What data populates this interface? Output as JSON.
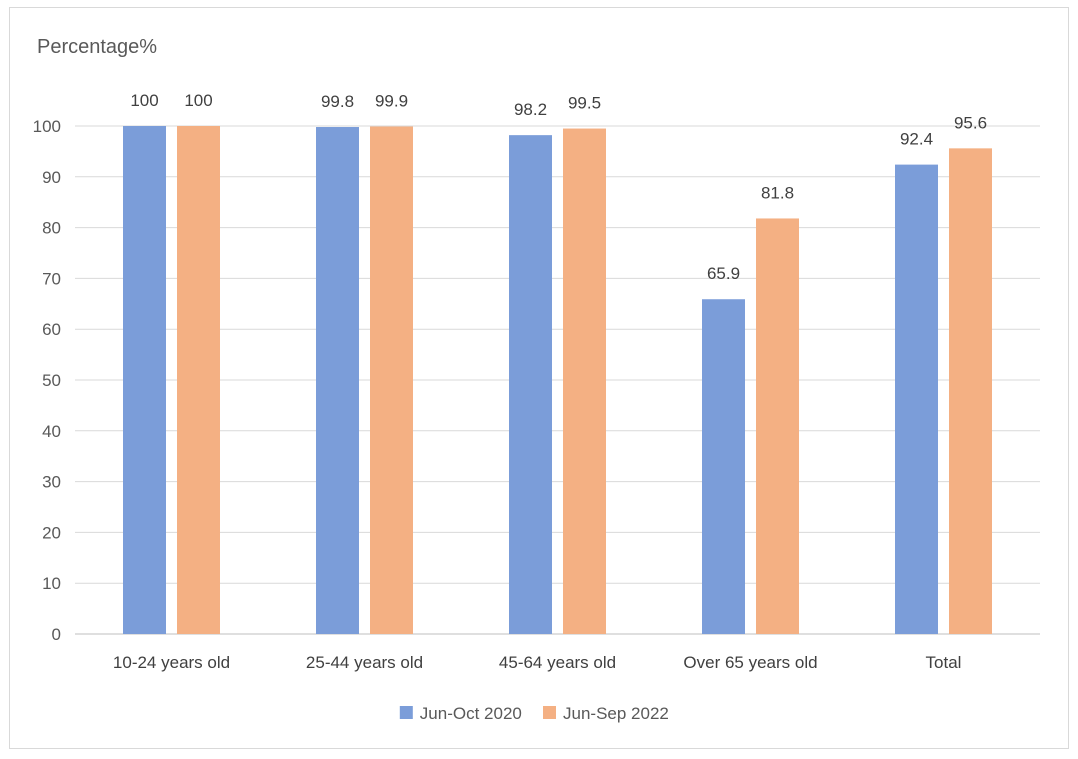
{
  "chart_data": {
    "type": "bar",
    "ylabel": "Percentage%",
    "categories": [
      "10-24 years old",
      "25-44 years old",
      "45-64 years old",
      "Over 65 years old",
      "Total"
    ],
    "series": [
      {
        "name": "Jun-Oct 2020",
        "color": "#7b9dd9",
        "values": [
          100,
          99.8,
          98.2,
          65.9,
          92.4
        ]
      },
      {
        "name": "Jun-Sep 2022",
        "color": "#f4b083",
        "values": [
          100,
          99.9,
          99.5,
          81.8,
          95.6
        ]
      }
    ],
    "ylim": [
      0,
      100
    ],
    "yticks": [
      0,
      10,
      20,
      30,
      40,
      50,
      60,
      70,
      80,
      90,
      100
    ],
    "grid": true,
    "legend": "bottom-center"
  }
}
